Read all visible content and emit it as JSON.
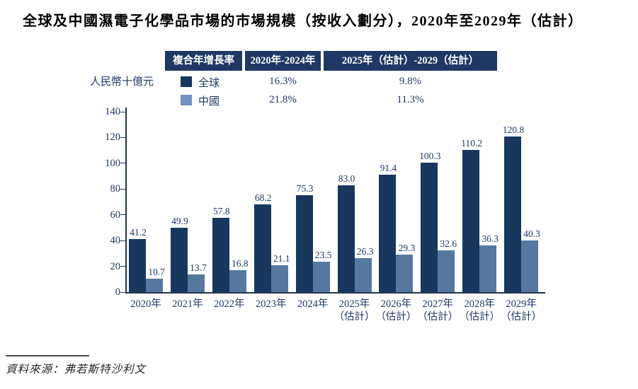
{
  "title": "全球及中國濕電子化學品市場的市場規模（按收入劃分），2020年至2029年（估計）",
  "unit_label": "人民幣十億元",
  "cagr_table": {
    "col1_header": "複合年增長率",
    "col2_header": "2020年-2024年",
    "col3_header": "2025年（估計）-2029（估計）",
    "rows": [
      {
        "label": "全球",
        "period1": "16.3%",
        "period2": "9.8%"
      },
      {
        "label": "中國",
        "period1": "21.8%",
        "period2": "11.3%"
      }
    ]
  },
  "chart_data": {
    "type": "bar",
    "title": "全球及中國濕電子化學品市場的市場規模（按收入劃分），2020年至2029年（估計）",
    "ylabel": "人民幣十億元",
    "xlabel": "",
    "ylim": [
      0,
      140
    ],
    "ytick_step": 20,
    "grid": false,
    "legend_position": "top",
    "categories": [
      "2020年",
      "2021年",
      "2022年",
      "2023年",
      "2024年",
      "2025年",
      "2026年",
      "2027年",
      "2028年",
      "2029年"
    ],
    "category_line2": [
      "",
      "",
      "",
      "",
      "",
      "（估計）",
      "（估計）",
      "（估計）",
      "（估計）",
      "（估計）"
    ],
    "series": [
      {
        "name": "全球",
        "color": "#17375E",
        "values": [
          41.2,
          49.9,
          57.8,
          68.2,
          75.3,
          83.0,
          91.4,
          100.3,
          110.2,
          120.8
        ]
      },
      {
        "name": "中國",
        "color": "#56789F",
        "values": [
          10.7,
          13.7,
          16.8,
          21.1,
          23.5,
          26.3,
          29.3,
          32.6,
          36.3,
          40.3
        ]
      }
    ]
  },
  "source": {
    "text": "資料來源：弗若斯特沙利文"
  },
  "colors": {
    "header_bg": "#1F3864",
    "text_navy": "#1F3864",
    "global_bar": "#17375E",
    "china_bar": "#56789F",
    "china_legend_swatch": "#7490C0",
    "axis": "#24344D",
    "source_rule": "#4D4D4D"
  }
}
